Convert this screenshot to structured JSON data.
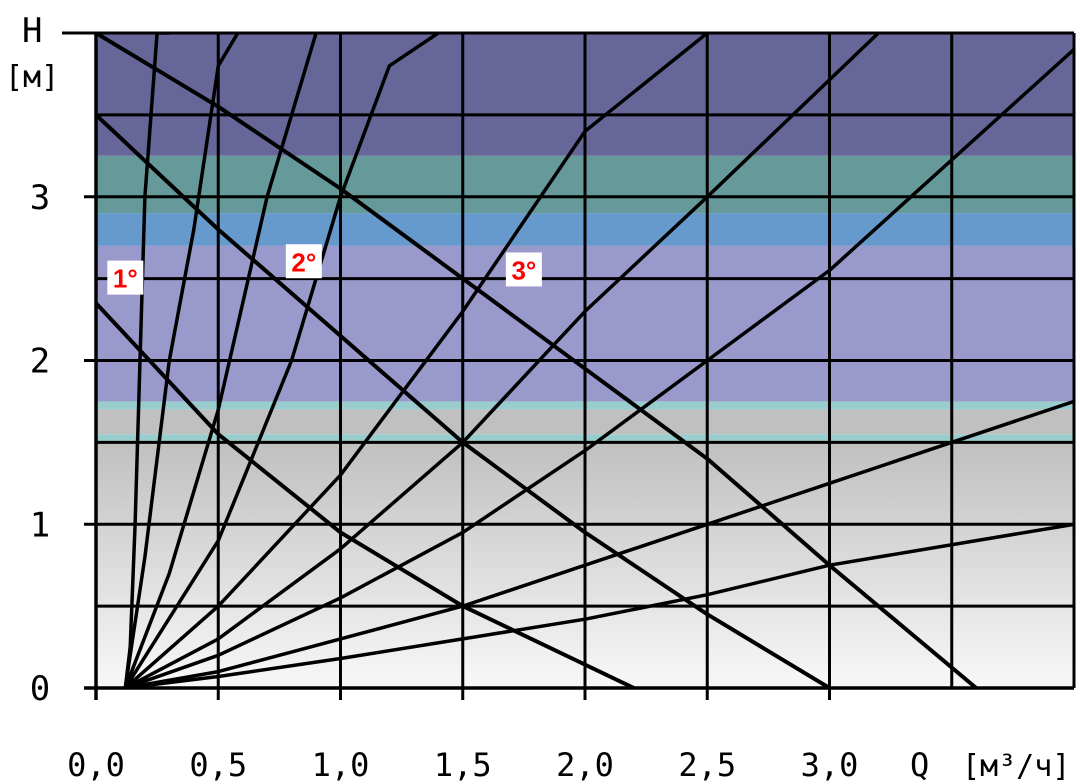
{
  "chart_data": {
    "type": "line",
    "xlabel": "Q [м³/ч]",
    "ylabel": "H [м]",
    "x_unit_label": "Q",
    "x_unit_bracket": "[м³/ч]",
    "y_unit_label": "H",
    "y_unit_bracket": "[м]",
    "xlim": [
      0.0,
      4.0
    ],
    "ylim": [
      0.0,
      4.0
    ],
    "grid": true,
    "x_ticks": [
      0.0,
      0.5,
      1.0,
      1.5,
      2.0,
      2.5,
      3.0
    ],
    "x_tick_labels": [
      "0,0",
      "0,5",
      "1,0",
      "1,5",
      "2,0",
      "2,5",
      "3,0"
    ],
    "y_ticks": [
      0,
      1,
      2,
      3
    ],
    "y_tick_labels": [
      "0",
      "1",
      "2",
      "3"
    ],
    "background_bands": [
      {
        "from": 3.25,
        "to": 4.0,
        "color": "#666699"
      },
      {
        "from": 2.9,
        "to": 3.25,
        "color": "#669999"
      },
      {
        "from": 2.7,
        "to": 2.9,
        "color": "#6699cc"
      },
      {
        "from": 1.75,
        "to": 2.7,
        "color": "#9999cc"
      },
      {
        "from": 1.7,
        "to": 1.75,
        "color": "#99cccc"
      },
      {
        "from": 1.55,
        "to": 1.7,
        "color": "#c0c0c0"
      },
      {
        "from": 1.5,
        "to": 1.55,
        "color": "#99cccc"
      },
      {
        "from": 0.0,
        "to": 1.5,
        "gradient": [
          "#c0c0c0",
          "#f8f8f8"
        ]
      }
    ],
    "curve_labels": [
      {
        "text": "1°",
        "x": 0.12,
        "y": 2.5
      },
      {
        "text": "2°",
        "x": 0.85,
        "y": 2.6
      },
      {
        "text": "3°",
        "x": 1.75,
        "y": 2.55
      }
    ],
    "pump_curves": [
      {
        "name": "1°",
        "x": [
          0.0,
          0.5,
          1.0,
          1.5,
          2.2
        ],
        "y": [
          2.35,
          1.55,
          0.95,
          0.5,
          0.0
        ]
      },
      {
        "name": "2°",
        "x": [
          0.0,
          0.5,
          1.0,
          1.5,
          2.0,
          2.5,
          3.0
        ],
        "y": [
          3.5,
          2.8,
          2.15,
          1.5,
          0.95,
          0.45,
          0.0
        ]
      },
      {
        "name": "3°",
        "x": [
          0.0,
          0.5,
          1.0,
          1.5,
          2.0,
          2.5,
          3.0,
          3.6
        ],
        "y": [
          4.0,
          3.55,
          3.05,
          2.5,
          1.95,
          1.4,
          0.75,
          0.0
        ]
      }
    ],
    "system_curves": [
      {
        "x": [
          0.12,
          0.14,
          0.16,
          0.18,
          0.2,
          0.25,
          0.3
        ],
        "y": [
          0.0,
          0.25,
          1.0,
          2.0,
          3.0,
          4.0,
          4.0
        ]
      },
      {
        "x": [
          0.12,
          0.2,
          0.3,
          0.4,
          0.5,
          0.58
        ],
        "y": [
          0.0,
          0.8,
          2.0,
          2.8,
          3.8,
          4.0
        ]
      },
      {
        "x": [
          0.12,
          0.3,
          0.5,
          0.7,
          0.9
        ],
        "y": [
          0.0,
          0.7,
          1.7,
          3.0,
          4.0
        ]
      },
      {
        "x": [
          0.12,
          0.5,
          0.8,
          1.0,
          1.2,
          1.4
        ],
        "y": [
          0.0,
          0.9,
          2.0,
          3.0,
          3.8,
          4.0
        ]
      },
      {
        "x": [
          0.12,
          0.5,
          1.0,
          1.5,
          2.0,
          2.5
        ],
        "y": [
          0.0,
          0.5,
          1.3,
          2.3,
          3.4,
          4.0
        ]
      },
      {
        "x": [
          0.12,
          0.5,
          1.0,
          1.5,
          2.0,
          2.5,
          3.2
        ],
        "y": [
          0.0,
          0.3,
          0.85,
          1.5,
          2.3,
          3.0,
          4.0
        ]
      },
      {
        "x": [
          0.12,
          0.5,
          1.0,
          1.5,
          2.0,
          2.5,
          3.0,
          4.0
        ],
        "y": [
          0.0,
          0.2,
          0.55,
          0.95,
          1.45,
          2.0,
          2.55,
          3.9
        ]
      },
      {
        "x": [
          0.12,
          0.5,
          1.0,
          1.5,
          2.0,
          2.5,
          3.0,
          4.0
        ],
        "y": [
          0.0,
          0.1,
          0.3,
          0.5,
          0.75,
          1.0,
          1.25,
          1.75
        ]
      },
      {
        "x": [
          0.12,
          0.5,
          1.0,
          1.5,
          2.0,
          2.5,
          3.0,
          4.0
        ],
        "y": [
          0.0,
          0.07,
          0.18,
          0.3,
          0.42,
          0.57,
          0.75,
          1.0
        ]
      }
    ]
  },
  "colors": {
    "grid": "#000000",
    "curve": "#000000",
    "label_bg": "#ffffff",
    "label_text": "#ff0000"
  }
}
